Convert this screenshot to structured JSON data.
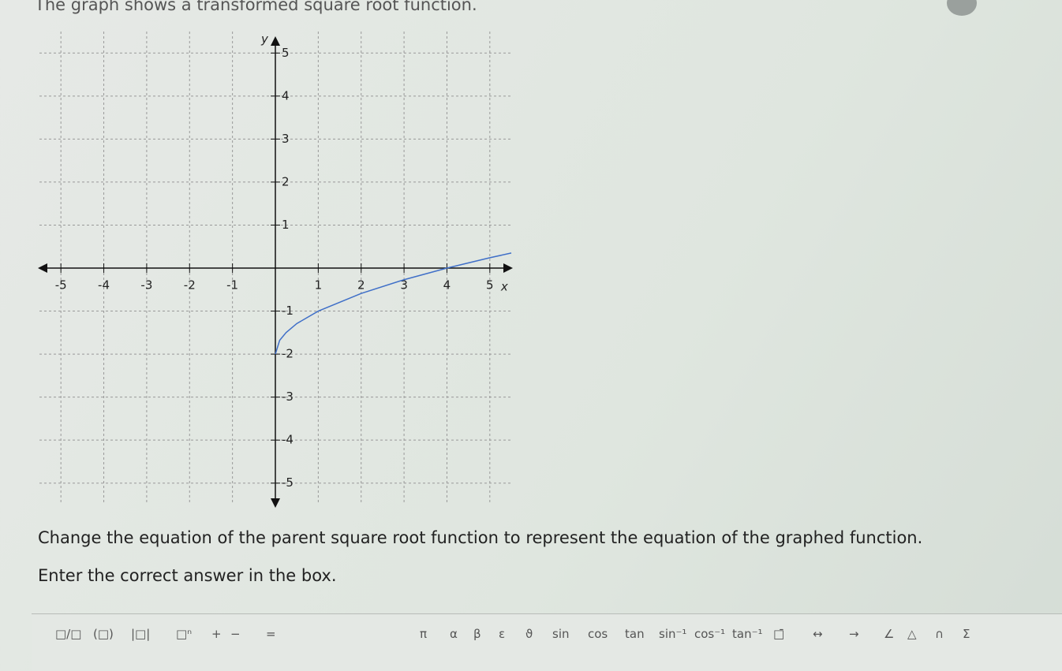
{
  "prompt": "The graph shows a transformed square root function.",
  "graph": {
    "xlabel": "x",
    "ylabel": "y",
    "xlim": [
      -5.5,
      5.5
    ],
    "ylim": [
      -5.5,
      5.5
    ],
    "xticks": [
      -5,
      -4,
      -3,
      -2,
      -1,
      1,
      2,
      3,
      4,
      5
    ],
    "yticks": [
      -5,
      -4,
      -3,
      -2,
      -1,
      1,
      2,
      3,
      4,
      5
    ],
    "grid": true,
    "color": "#3f6fc8",
    "curve": {
      "x": [
        0,
        0.1,
        0.25,
        0.5,
        1,
        2,
        3,
        4,
        5,
        5.5
      ],
      "y": [
        -2,
        -1.68,
        -1.5,
        -1.29,
        -1,
        -0.59,
        -0.27,
        0,
        0.24,
        0.35
      ]
    }
  },
  "question": "Change the equation of the parent square root function to represent the equation of the graphed function.",
  "instruction": "Enter the correct answer in the box.",
  "toolbar": [
    "□/□",
    "(□)",
    "|□|",
    "□ⁿ",
    "+",
    "−",
    "=",
    "π",
    "α",
    "β",
    "ε",
    "ϑ",
    "sin",
    "cos",
    "tan",
    "sin⁻¹",
    "cos⁻¹",
    "tan⁻¹",
    "□̄",
    "↔",
    "→",
    "∠",
    "△",
    "∩",
    "Σ"
  ]
}
